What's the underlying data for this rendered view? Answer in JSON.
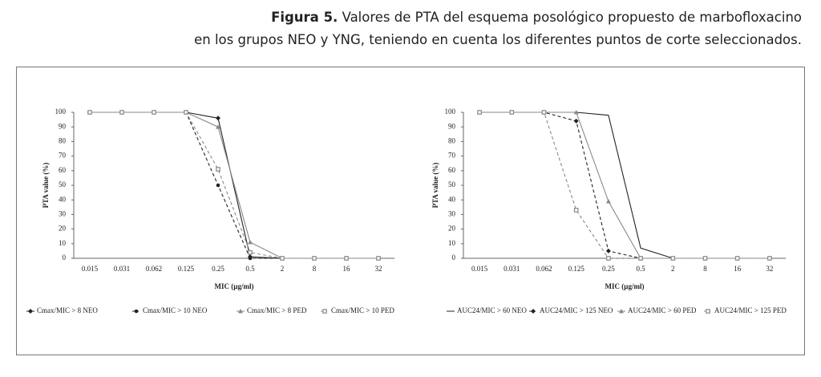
{
  "caption": {
    "label": "Figura 5.",
    "line1": "Valores de PTA del esquema posológico propuesto de marbofloxacino",
    "line2": "en los grupos NEO y YNG, teniendo en cuenta los diferentes puntos de corte seleccionados."
  },
  "chart_data": [
    {
      "type": "line",
      "y_label": "PTA value (%)",
      "x_label": "MIC (µg/ml)",
      "categories": [
        "0.015",
        "0.031",
        "0.062",
        "0.125",
        "0.25",
        "0.5",
        "2",
        "8",
        "16",
        "32"
      ],
      "ylim": [
        0,
        100
      ],
      "yticks": [
        0,
        10,
        20,
        30,
        40,
        50,
        60,
        70,
        80,
        90,
        100
      ],
      "grid": false,
      "legend": "bottom",
      "series": [
        {
          "name": "Cmax/MIC > 8 NEO",
          "color": "#222222",
          "line_style": "solid",
          "marker": "diamond",
          "values": [
            100,
            100,
            100,
            100,
            96,
            1,
            0,
            0,
            0,
            0
          ]
        },
        {
          "name": "Cmax/MIC > 10 NEO",
          "color": "#222222",
          "line_style": "dashed",
          "marker": "circle",
          "values": [
            100,
            100,
            100,
            100,
            50,
            0,
            0,
            0,
            0,
            0
          ]
        },
        {
          "name": "Cmax/MIC > 8 PED",
          "color": "#888888",
          "line_style": "solid",
          "marker": "triangle",
          "values": [
            100,
            100,
            100,
            100,
            90,
            11,
            0,
            0,
            0,
            0
          ]
        },
        {
          "name": "Cmax/MIC > 10 PED",
          "color": "#888888",
          "line_style": "dashed",
          "marker": "square",
          "values": [
            100,
            100,
            100,
            100,
            61,
            4,
            0,
            0,
            0,
            0
          ]
        }
      ]
    },
    {
      "type": "line",
      "y_label": "PTA value (%)",
      "x_label": "MIC (µg/ml)",
      "categories": [
        "0.015",
        "0.031",
        "0.062",
        "0.125",
        "0.25",
        "0.5",
        "2",
        "8",
        "16",
        "32"
      ],
      "ylim": [
        0,
        100
      ],
      "yticks": [
        0,
        10,
        20,
        30,
        40,
        50,
        60,
        70,
        80,
        90,
        100
      ],
      "grid": false,
      "legend": "bottom",
      "series": [
        {
          "name": "AUC24/MIC > 60 NEO",
          "color": "#222222",
          "line_style": "solid",
          "marker": "none",
          "values": [
            100,
            100,
            100,
            100,
            98,
            7,
            0,
            0,
            0,
            0
          ]
        },
        {
          "name": "AUC24/MIC > 125 NEO",
          "color": "#222222",
          "line_style": "dashed",
          "marker": "diamond",
          "values": [
            100,
            100,
            100,
            94,
            5,
            0,
            0,
            0,
            0,
            0
          ]
        },
        {
          "name": "AUC24/MIC > 60 PED",
          "color": "#888888",
          "line_style": "solid",
          "marker": "triangle",
          "values": [
            100,
            100,
            100,
            100,
            39,
            0,
            0,
            0,
            0,
            0
          ]
        },
        {
          "name": "AUC24/MIC > 125 PED",
          "color": "#888888",
          "line_style": "dashed",
          "marker": "square",
          "values": [
            100,
            100,
            100,
            33,
            0,
            0,
            0,
            0,
            0,
            0
          ]
        }
      ]
    }
  ]
}
